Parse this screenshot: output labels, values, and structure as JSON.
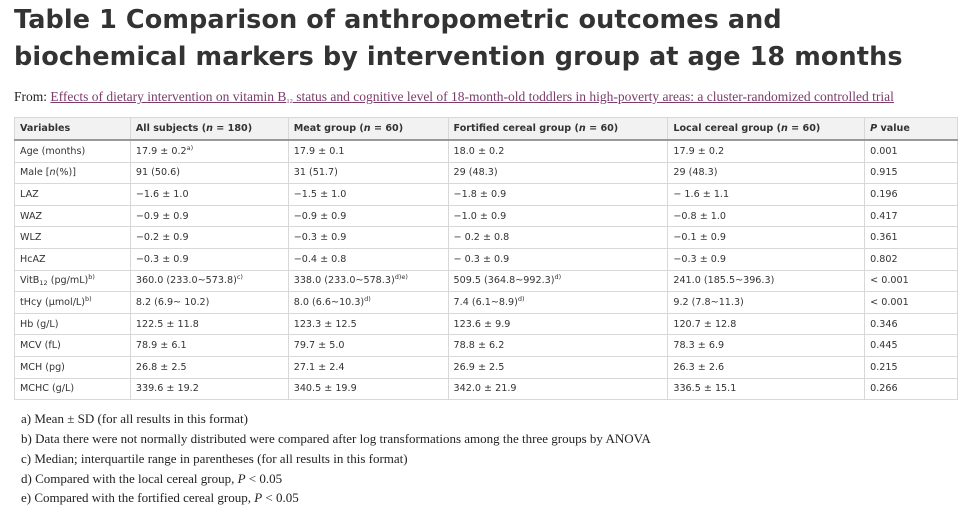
{
  "header": {
    "title": "Table 1 Comparison of anthropometric outcomes and biochemical markers by intervention group at age 18 months",
    "from_label": "From: ",
    "source": [
      {
        "t": "Effects of dietary intervention on vitamin B"
      },
      {
        "sub": "12"
      },
      {
        "t": " status and cognitive level of 18-month-old toddlers in high-poverty areas: a cluster-randomized controlled trial"
      }
    ]
  },
  "table": {
    "columns": [
      "Variables",
      [
        {
          "t": "All subjects ("
        },
        {
          "i": "n"
        },
        {
          "t": " = 180)"
        }
      ],
      [
        {
          "t": "Meat group ("
        },
        {
          "i": "n"
        },
        {
          "t": " = 60)"
        }
      ],
      [
        {
          "t": "Fortified cereal group ("
        },
        {
          "i": "n"
        },
        {
          "t": " = 60)"
        }
      ],
      [
        {
          "t": "Local cereal group ("
        },
        {
          "i": "n"
        },
        {
          "t": " = 60)"
        }
      ],
      [
        {
          "i": "P"
        },
        {
          "t": " value"
        }
      ]
    ],
    "rows": [
      [
        "Age (months)",
        [
          {
            "t": "17.9 ± 0.2"
          },
          {
            "sup": "a)"
          }
        ],
        "17.9 ± 0.1",
        "18.0 ± 0.2",
        "17.9 ± 0.2",
        "0.001"
      ],
      [
        [
          {
            "t": "Male ["
          },
          {
            "i": "n"
          },
          {
            "t": "(%)]"
          }
        ],
        "91 (50.6)",
        "31 (51.7)",
        "29 (48.3)",
        "29 (48.3)",
        "0.915"
      ],
      [
        "LAZ",
        "−1.6 ± 1.0",
        "−1.5 ± 1.0",
        "−1.8 ± 0.9",
        "− 1.6 ± 1.1",
        "0.196"
      ],
      [
        "WAZ",
        "−0.9 ± 0.9",
        "−0.9 ± 0.9",
        "−1.0 ± 0.9",
        "−0.8 ± 1.0",
        "0.417"
      ],
      [
        "WLZ",
        "−0.2 ± 0.9",
        "−0.3 ± 0.9",
        "− 0.2 ± 0.8",
        "−0.1 ± 0.9",
        "0.361"
      ],
      [
        "HcAZ",
        "−0.3 ± 0.9",
        "−0.4 ± 0.8",
        "− 0.3 ± 0.9",
        "−0.3 ± 0.9",
        "0.802"
      ],
      [
        [
          {
            "t": "VitB"
          },
          {
            "sub": "12"
          },
          {
            "t": " (pg/mL)"
          },
          {
            "sup": "b)"
          }
        ],
        [
          {
            "t": "360.0 (233.0~573.8)"
          },
          {
            "sup": "c)"
          }
        ],
        [
          {
            "t": "338.0 (233.0~578.3)"
          },
          {
            "sup": "d)e)"
          }
        ],
        [
          {
            "t": "509.5 (364.8~992.3)"
          },
          {
            "sup": "d)"
          }
        ],
        "241.0 (185.5~396.3)",
        "< 0.001"
      ],
      [
        [
          {
            "t": "tHcy (μmol/L)"
          },
          {
            "sup": "b)"
          }
        ],
        "8.2 (6.9~ 10.2)",
        [
          {
            "t": "8.0 (6.6~10.3)"
          },
          {
            "sup": "d)"
          }
        ],
        [
          {
            "t": "7.4 (6.1~8.9)"
          },
          {
            "sup": "d)"
          }
        ],
        "9.2 (7.8~11.3)",
        "< 0.001"
      ],
      [
        "Hb (g/L)",
        "122.5 ± 11.8",
        "123.3 ± 12.5",
        "123.6 ± 9.9",
        "120.7 ± 12.8",
        "0.346"
      ],
      [
        "MCV (fL)",
        "78.9 ± 6.1",
        "79.7 ± 5.0",
        "78.8 ± 6.2",
        "78.3 ± 6.9",
        "0.445"
      ],
      [
        "MCH (pg)",
        "26.8 ± 2.5",
        "27.1 ± 2.4",
        "26.9 ± 2.5",
        "26.3 ± 2.6",
        "0.215"
      ],
      [
        "MCHC (g/L)",
        "339.6 ± 19.2",
        "340.5 ± 19.9",
        "342.0 ± 21.9",
        "336.5 ± 15.1",
        "0.266"
      ]
    ]
  },
  "footnotes": [
    "a) Mean ± SD (for all results in this format)",
    "b) Data there were not normally distributed were compared after log transformations among the three groups by ANOVA",
    "c) Median; interquartile range in parentheses (for all results in this format)",
    [
      {
        "t": "d) Compared with the local cereal group, "
      },
      {
        "i": "P"
      },
      {
        "t": " < 0.05"
      }
    ],
    [
      {
        "t": "e) Compared with the fortified cereal group, "
      },
      {
        "i": "P"
      },
      {
        "t": " < 0.05"
      }
    ]
  ]
}
